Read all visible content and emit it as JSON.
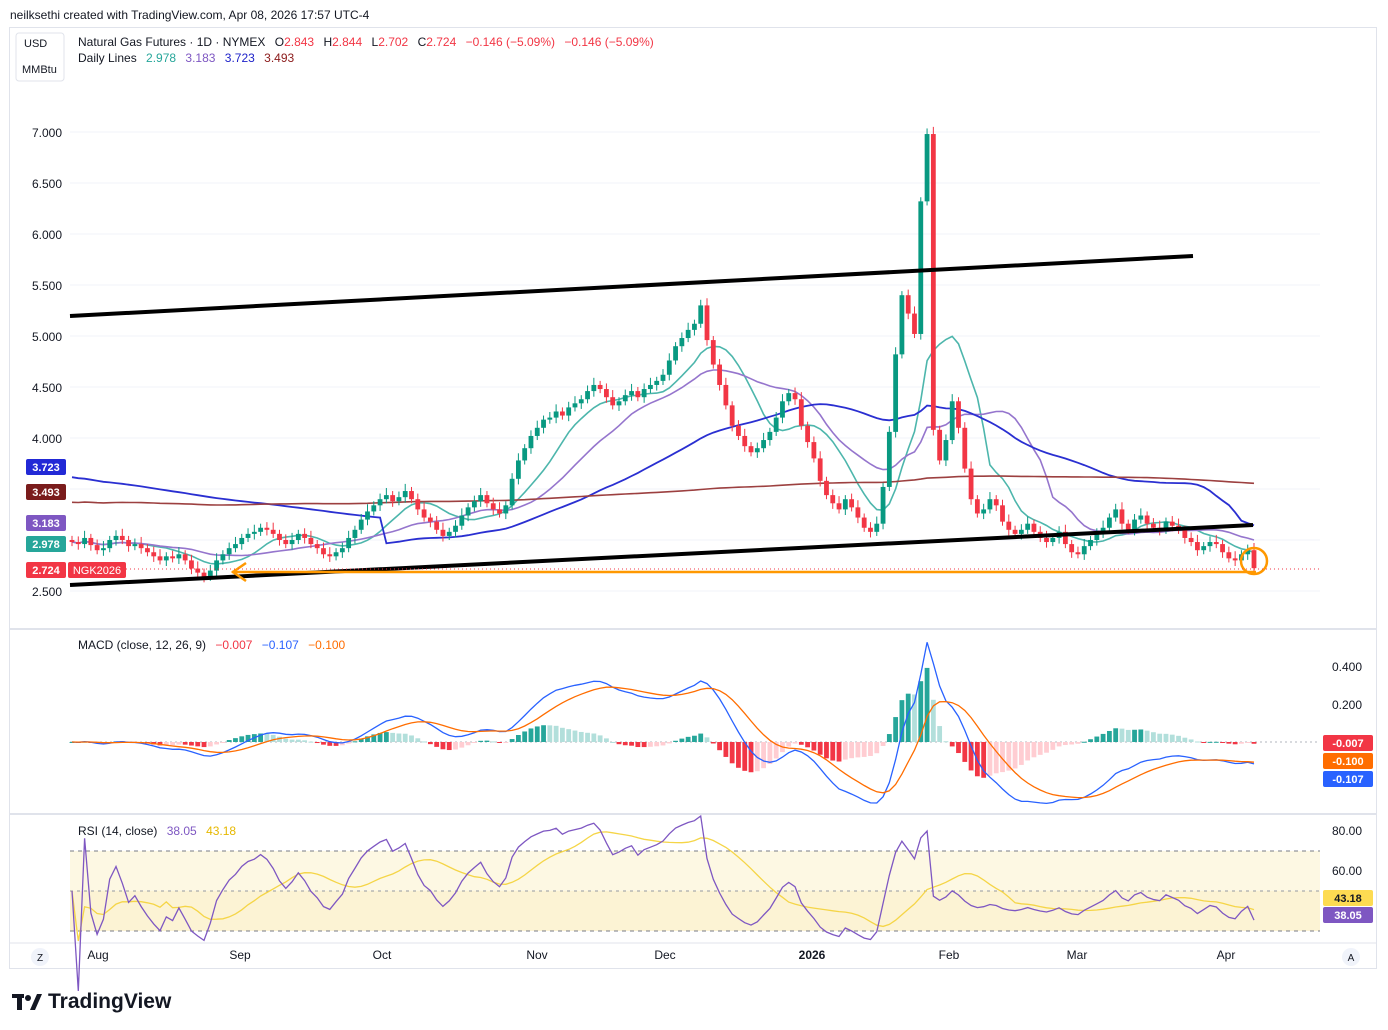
{
  "header": {
    "attribution": "neilksethi created with TradingView.com, Apr 08, 2026 17:57 UTC-4"
  },
  "currency": {
    "line1": "USD",
    "line2": "MMBtu"
  },
  "legend": {
    "title": "Natural Gas Futures · 1D · NYMEX",
    "o_label": "O",
    "o_value": "2.843",
    "h_label": "H",
    "h_value": "2.844",
    "l_label": "L",
    "l_value": "2.702",
    "c_label": "C",
    "c_value": "2.724",
    "change": "−0.146 (−5.09%)",
    "change2": "−0.146 (−5.09%)",
    "lines_title": "Daily Lines",
    "lines_values": [
      {
        "value": "2.978",
        "color": "#26a69a"
      },
      {
        "value": "3.183",
        "color": "#7e57c2"
      },
      {
        "value": "3.723",
        "color": "#1e22c9"
      },
      {
        "value": "3.493",
        "color": "#8b1a1a"
      }
    ]
  },
  "price_badges": [
    {
      "value": "3.723",
      "color": "#2229d6",
      "price": 3.723
    },
    {
      "value": "3.493",
      "color": "#7a1c1c",
      "price": 3.493
    },
    {
      "value": "3.183",
      "color": "#7e57c2",
      "price": 3.183
    },
    {
      "value": "2.978",
      "color": "#26a69a",
      "price": 2.978
    },
    {
      "value": "2.724",
      "color": "#f23645",
      "price": 2.724
    }
  ],
  "symbol_badge": "NGK2026",
  "macd_legend": {
    "title": "MACD (close, 12, 26, 9)",
    "v1": "−0.007",
    "v2": "−0.107",
    "v3": "−0.100"
  },
  "macd_badges": [
    {
      "value": "-0.007",
      "color": "#f23645"
    },
    {
      "value": "-0.100",
      "color": "#ff6d00"
    },
    {
      "value": "-0.107",
      "color": "#2962ff"
    }
  ],
  "rsi_legend": {
    "title": "RSI (14, close)",
    "v1": "38.05",
    "v2": "43.18"
  },
  "rsi_badges": [
    {
      "value": "43.18",
      "color": "#fddb52",
      "text": "#131722"
    },
    {
      "value": "38.05",
      "color": "#7e57c2",
      "text": "#ffffff"
    }
  ],
  "time_axis": [
    "Aug",
    "Sep",
    "Oct",
    "Nov",
    "Dec",
    "2026",
    "Feb",
    "Mar",
    "Apr"
  ],
  "nav_left": "Z",
  "nav_right": "A",
  "footer": {
    "brand": "TradingView"
  },
  "chart_data": {
    "type": "candlestick",
    "title": "Natural Gas Futures · 1D · NYMEX",
    "price_axis_ticks": [
      "7.000",
      "6.500",
      "6.000",
      "5.500",
      "5.000",
      "4.500",
      "4.000",
      "2.500"
    ],
    "ylim": [
      2.5,
      7.4
    ],
    "months": [
      "Aug",
      "Sep",
      "Oct",
      "Nov",
      "Dec",
      "2026",
      "Feb",
      "Mar",
      "Apr"
    ],
    "closes": [
      2.98,
      2.96,
      3.02,
      2.95,
      2.9,
      2.92,
      3.0,
      3.04,
      3.0,
      2.94,
      2.96,
      2.92,
      2.88,
      2.84,
      2.8,
      2.84,
      2.82,
      2.86,
      2.8,
      2.72,
      2.68,
      2.64,
      2.7,
      2.8,
      2.86,
      2.92,
      2.96,
      3.02,
      3.06,
      3.08,
      3.12,
      3.1,
      3.06,
      3.0,
      2.96,
      3.0,
      3.06,
      3.02,
      2.96,
      2.92,
      2.86,
      2.84,
      2.88,
      2.92,
      3.02,
      3.1,
      3.2,
      3.28,
      3.34,
      3.4,
      3.44,
      3.38,
      3.42,
      3.48,
      3.4,
      3.3,
      3.22,
      3.18,
      3.1,
      3.04,
      3.08,
      3.14,
      3.24,
      3.32,
      3.38,
      3.44,
      3.36,
      3.3,
      3.26,
      3.34,
      3.6,
      3.78,
      3.9,
      4.02,
      4.1,
      4.18,
      4.2,
      4.26,
      4.22,
      4.3,
      4.34,
      4.38,
      4.46,
      4.52,
      4.48,
      4.4,
      4.32,
      4.36,
      4.42,
      4.46,
      4.4,
      4.48,
      4.52,
      4.56,
      4.62,
      4.76,
      4.9,
      4.98,
      5.06,
      5.12,
      5.3,
      4.96,
      4.72,
      4.52,
      4.32,
      4.12,
      4.02,
      3.92,
      3.86,
      3.9,
      3.98,
      4.06,
      4.2,
      4.36,
      4.44,
      4.38,
      4.12,
      3.96,
      3.8,
      3.58,
      3.44,
      3.36,
      3.3,
      3.4,
      3.32,
      3.22,
      3.12,
      3.08,
      3.16,
      3.52,
      4.06,
      4.82,
      5.4,
      5.22,
      5.02,
      6.32,
      6.98,
      4.08,
      3.78,
      3.98,
      4.36,
      4.1,
      3.7,
      3.4,
      3.26,
      3.3,
      3.4,
      3.34,
      3.18,
      3.1,
      3.06,
      3.1,
      3.16,
      3.08,
      3.02,
      2.98,
      3.02,
      3.08,
      2.96,
      2.88,
      2.86,
      2.94,
      3.0,
      3.06,
      3.12,
      3.22,
      3.3,
      3.16,
      3.1,
      3.2,
      3.24,
      3.16,
      3.12,
      3.1,
      3.18,
      3.14,
      3.1,
      3.02,
      2.98,
      2.9,
      2.94,
      2.98,
      2.96,
      2.88,
      2.82,
      2.8,
      2.86,
      2.9,
      2.724
    ],
    "series": [
      {
        "name": "2.978",
        "color": "#26a69a"
      },
      {
        "name": "3.183",
        "color": "#7e57c2"
      },
      {
        "name": "3.723",
        "color": "#1e22c9"
      },
      {
        "name": "3.493",
        "color": "#8b1a1a"
      }
    ],
    "macd_axis_ticks": [
      "0.400",
      "0.200"
    ],
    "rsi_axis_ticks": [
      "80.00",
      "60.00"
    ],
    "rsi_levels": [
      70,
      50,
      30
    ]
  }
}
